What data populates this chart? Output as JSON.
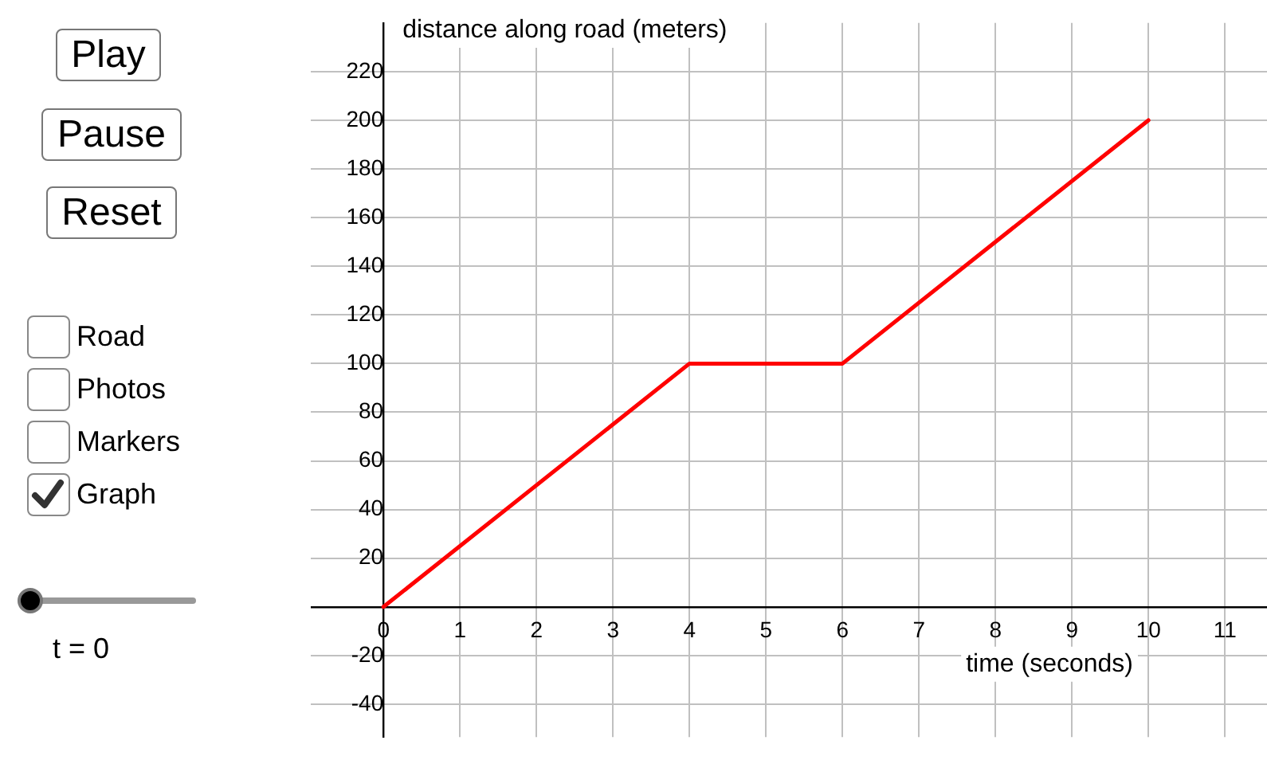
{
  "chart_data": {
    "type": "line",
    "xlabel": "time (seconds)",
    "ylabel": "distance along road (meters)",
    "x": [
      0,
      4,
      6,
      10
    ],
    "series": [
      {
        "color": "#ff0000",
        "values": [
          0,
          100,
          100,
          200
        ]
      }
    ],
    "xlim": [
      -0.95,
      11.55
    ],
    "ylim": [
      -53.5,
      240
    ],
    "xticks": [
      0,
      1,
      2,
      3,
      4,
      5,
      6,
      7,
      8,
      9,
      10,
      11
    ],
    "yticks": [
      -40,
      -20,
      {
        "value": 0,
        "label": null
      },
      20,
      40,
      60,
      80,
      100,
      120,
      140,
      160,
      180,
      200,
      220
    ],
    "grid": true,
    "legend": false,
    "marker": "none",
    "line_style": "solid",
    "annotations": [
      "Play",
      "Pause",
      "Reset",
      "Road",
      "Photos",
      "Markers",
      "Graph",
      "t = 0"
    ]
  }
}
